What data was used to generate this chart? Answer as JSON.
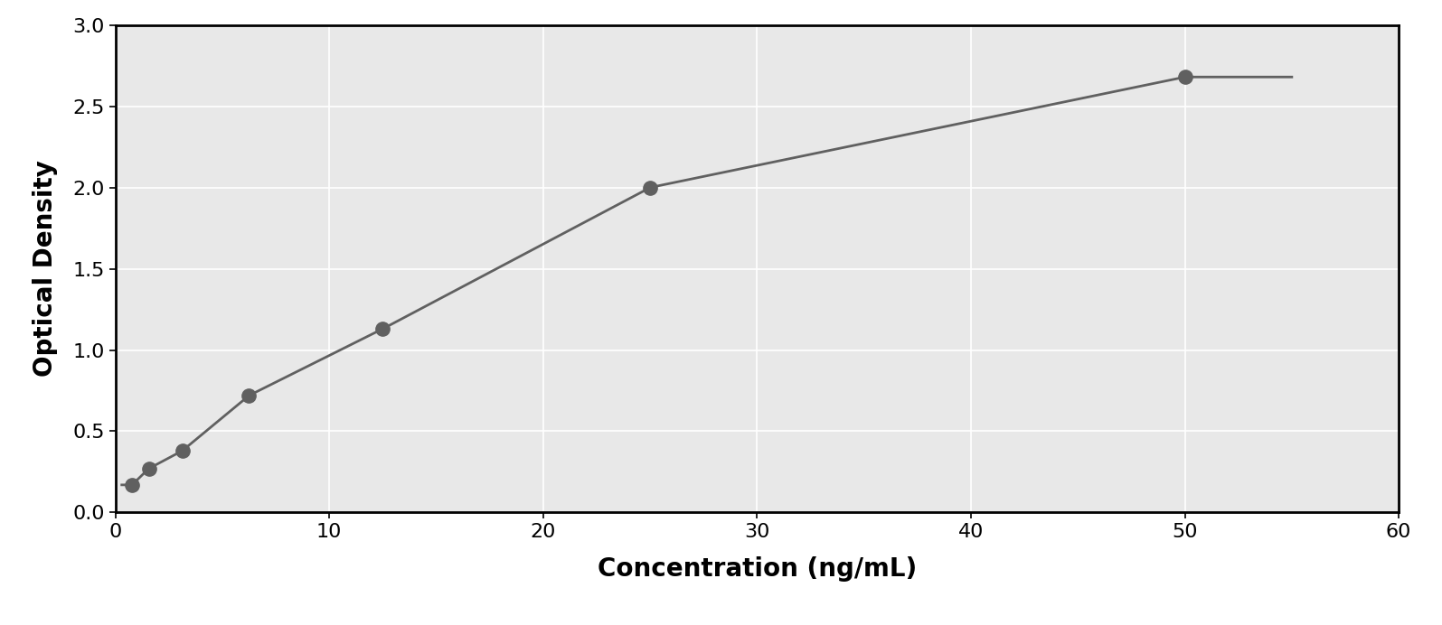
{
  "x_data": [
    0.78,
    1.56,
    3.13,
    6.25,
    12.5,
    25.0,
    50.0
  ],
  "y_data": [
    0.17,
    0.27,
    0.38,
    0.72,
    1.13,
    2.0,
    2.68
  ],
  "xlabel": "Concentration (ng/mL)",
  "ylabel": "Optical Density",
  "xlim": [
    0,
    60
  ],
  "ylim": [
    0,
    3
  ],
  "xticks": [
    0,
    10,
    20,
    30,
    40,
    50,
    60
  ],
  "yticks": [
    0,
    0.5,
    1.0,
    1.5,
    2.0,
    2.5,
    3.0
  ],
  "marker_color": "#606060",
  "line_color": "#606060",
  "marker_size": 11,
  "line_width": 2.0,
  "background_color": "#ffffff",
  "plot_bg_color": "#e8e8e8",
  "grid_color": "#ffffff",
  "xlabel_fontsize": 20,
  "ylabel_fontsize": 20,
  "tick_fontsize": 16,
  "xlabel_fontweight": "bold",
  "ylabel_fontweight": "bold",
  "fig_width": 15.95,
  "fig_height": 6.92,
  "spine_linewidth": 2.0,
  "curve_x_end": 55.0
}
